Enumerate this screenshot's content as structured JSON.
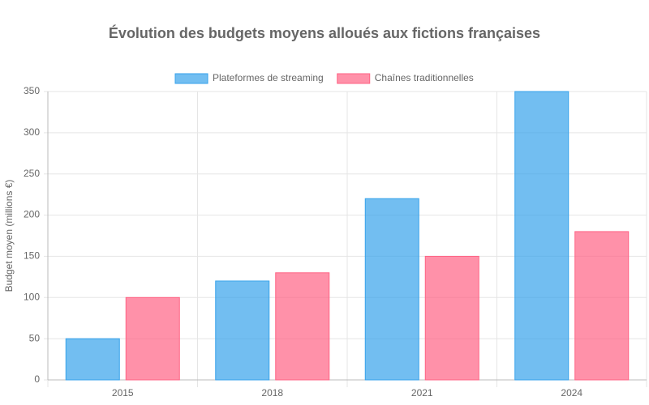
{
  "chart_data": {
    "type": "bar",
    "title": "Évolution des budgets moyens alloués aux fictions françaises",
    "y_label": "Budget moyen (millions €)",
    "categories": [
      "2015",
      "2018",
      "2021",
      "2024"
    ],
    "series": [
      {
        "name": "Plateformes de streaming",
        "color": "#36a2eb",
        "values": [
          50,
          120,
          220,
          350
        ]
      },
      {
        "name": "Chaînes traditionnelles",
        "color": "#ff6384",
        "values": [
          100,
          130,
          150,
          180
        ]
      }
    ],
    "ylim": [
      0,
      350
    ],
    "yticks": [
      0,
      50,
      100,
      150,
      200,
      250,
      300,
      350
    ],
    "grid": true,
    "legend": "top"
  }
}
